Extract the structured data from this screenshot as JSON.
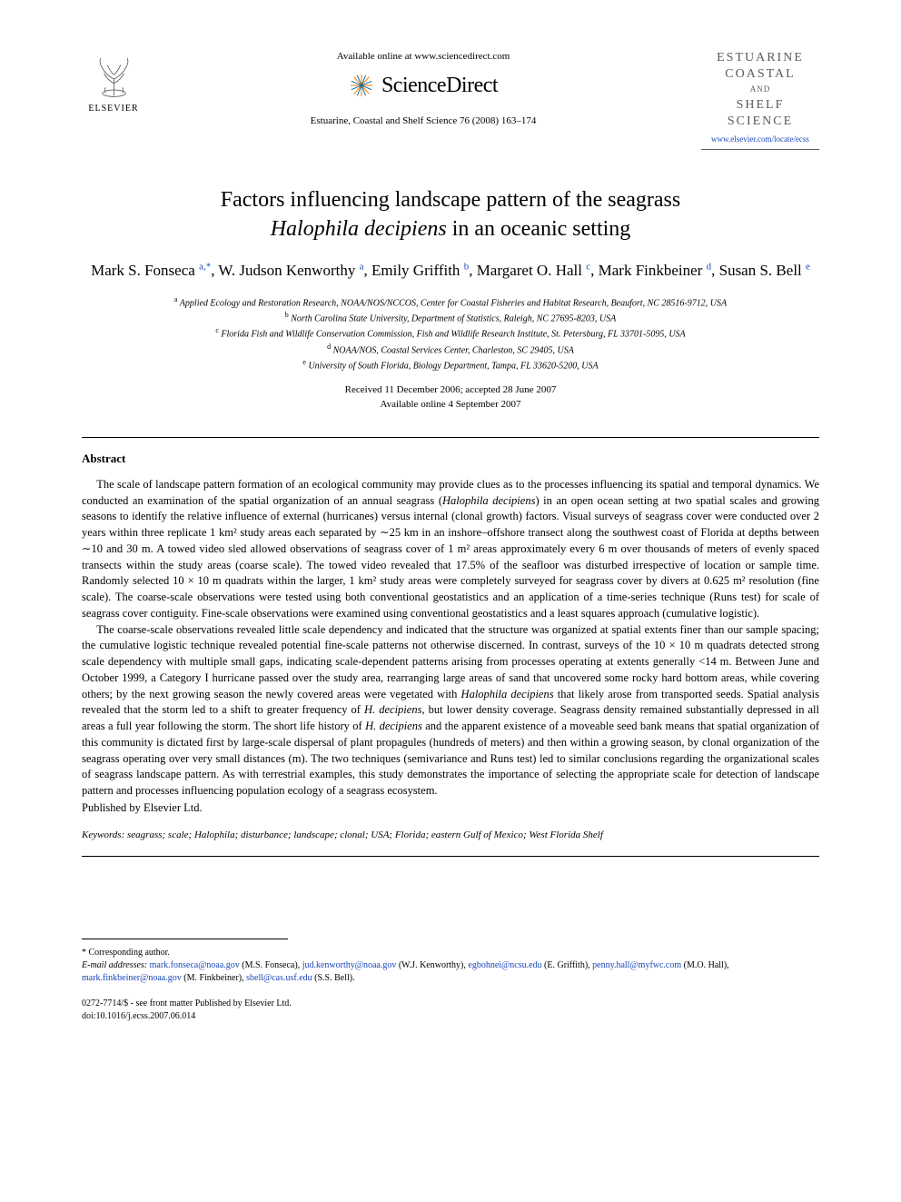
{
  "header": {
    "publisher_name": "ELSEVIER",
    "available_text": "Available online at www.sciencedirect.com",
    "sciencedirect": "ScienceDirect",
    "journal_reference": "Estuarine, Coastal and Shelf Science 76 (2008) 163–174",
    "journal_title_line1": "ESTUARINE",
    "journal_title_line2": "COASTAL",
    "journal_title_and": "AND",
    "journal_title_line3": "SHELF SCIENCE",
    "journal_url": "www.elsevier.com/locate/ecss"
  },
  "article": {
    "title_line1": "Factors influencing landscape pattern of the seagrass",
    "title_species": "Halophila decipiens",
    "title_line2": " in an oceanic setting",
    "authors_html": "Mark S. Fonseca <sup>a,*</sup>, W. Judson Kenworthy <sup>a</sup>, Emily Griffith <sup>b</sup>, Margaret O. Hall <sup>c</sup>, Mark Finkbeiner <sup>d</sup>, Susan S. Bell <sup>e</sup>"
  },
  "affiliations": [
    {
      "sup": "a",
      "text": "Applied Ecology and Restoration Research, NOAA/NOS/NCCOS, Center for Coastal Fisheries and Habitat Research, Beaufort, NC 28516-9712, USA"
    },
    {
      "sup": "b",
      "text": "North Carolina State University, Department of Statistics, Raleigh, NC 27695-8203, USA"
    },
    {
      "sup": "c",
      "text": "Florida Fish and Wildlife Conservation Commission, Fish and Wildlife Research Institute, St. Petersburg, FL 33701-5095, USA"
    },
    {
      "sup": "d",
      "text": "NOAA/NOS, Coastal Services Center, Charleston, SC 29405, USA"
    },
    {
      "sup": "e",
      "text": "University of South Florida, Biology Department, Tampa, FL 33620-5200, USA"
    }
  ],
  "dates": {
    "received_accepted": "Received 11 December 2006; accepted 28 June 2007",
    "available": "Available online 4 September 2007"
  },
  "abstract": {
    "heading": "Abstract",
    "p1": "The scale of landscape pattern formation of an ecological community may provide clues as to the processes influencing its spatial and temporal dynamics. We conducted an examination of the spatial organization of an annual seagrass (Halophila decipiens) in an open ocean setting at two spatial scales and growing seasons to identify the relative influence of external (hurricanes) versus internal (clonal growth) factors. Visual surveys of seagrass cover were conducted over 2 years within three replicate 1 km² study areas each separated by ∼25 km in an inshore–offshore transect along the southwest coast of Florida at depths between ∼10 and 30 m. A towed video sled allowed observations of seagrass cover of 1 m² areas approximately every 6 m over thousands of meters of evenly spaced transects within the study areas (coarse scale). The towed video revealed that 17.5% of the seafloor was disturbed irrespective of location or sample time. Randomly selected 10 × 10 m quadrats within the larger, 1 km² study areas were completely surveyed for seagrass cover by divers at 0.625 m² resolution (fine scale). The coarse-scale observations were tested using both conventional geostatistics and an application of a time-series technique (Runs test) for scale of seagrass cover contiguity. Fine-scale observations were examined using conventional geostatistics and a least squares approach (cumulative logistic).",
    "p2": "The coarse-scale observations revealed little scale dependency and indicated that the structure was organized at spatial extents finer than our sample spacing; the cumulative logistic technique revealed potential fine-scale patterns not otherwise discerned. In contrast, surveys of the 10 × 10 m quadrats detected strong scale dependency with multiple small gaps, indicating scale-dependent patterns arising from processes operating at extents generally <14 m. Between June and October 1999, a Category I hurricane passed over the study area, rearranging large areas of sand that uncovered some rocky hard bottom areas, while covering others; by the next growing season the newly covered areas were vegetated with Halophila decipiens that likely arose from transported seeds. Spatial analysis revealed that the storm led to a shift to greater frequency of H. decipiens, but lower density coverage. Seagrass density remained substantially depressed in all areas a full year following the storm. The short life history of H. decipiens and the apparent existence of a moveable seed bank means that spatial organization of this community is dictated first by large-scale dispersal of plant propagules (hundreds of meters) and then within a growing season, by clonal organization of the seagrass operating over very small distances (m). The two techniques (semivariance and Runs test) led to similar conclusions regarding the organizational scales of seagrass landscape pattern. As with terrestrial examples, this study demonstrates the importance of selecting the appropriate scale for detection of landscape pattern and processes influencing population ecology of a seagrass ecosystem.",
    "published_by": "Published by Elsevier Ltd."
  },
  "keywords": {
    "label": "Keywords:",
    "text": " seagrass; scale; Halophila; disturbance; landscape; clonal; USA; Florida; eastern Gulf of Mexico; West Florida Shelf"
  },
  "footnote": {
    "corresponding": "* Corresponding author.",
    "email_label": "E-mail addresses:",
    "emails": [
      {
        "addr": "mark.fonseca@noaa.gov",
        "name": "(M.S. Fonseca)"
      },
      {
        "addr": "jud.kenworthy@noaa.gov",
        "name": "(W.J. Kenworthy)"
      },
      {
        "addr": "egbohnei@ncsu.edu",
        "name": "(E. Griffith)"
      },
      {
        "addr": "penny.hall@myfwc.com",
        "name": "(M.O. Hall)"
      },
      {
        "addr": "mark.finkbeiner@noaa.gov",
        "name": "(M. Finkbeiner)"
      },
      {
        "addr": "sbell@cas.usf.edu",
        "name": "(S.S. Bell)"
      }
    ]
  },
  "copyright": {
    "line1": "0272-7714/$ - see front matter Published by Elsevier Ltd.",
    "doi": "doi:10.1016/j.ecss.2007.06.014"
  },
  "colors": {
    "link": "#1947b8",
    "text": "#000000",
    "journal_gray": "#5a5a5a",
    "sd_orange": "#f68b1f",
    "sd_blue": "#0066a4"
  }
}
